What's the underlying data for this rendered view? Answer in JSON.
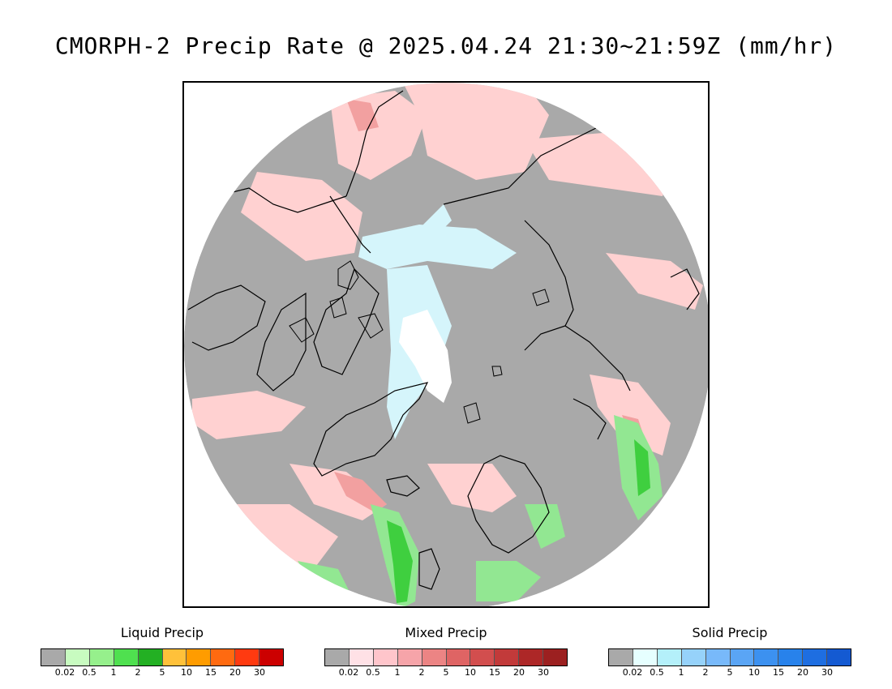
{
  "title": "CMORPH-2 Precip Rate @ 2025.04.24 21:30~21:59Z (mm/hr)",
  "map": {
    "projection": "north-polar-stereographic",
    "background_color": "#a9a9a9",
    "colors": {
      "no_precip": "#a9a9a9",
      "mixed_light": "#ffd1d1",
      "mixed_medium": "#f2a0a0",
      "solid_light": "#d5f5fb",
      "solid_heavy": "#ffffff",
      "liquid_light": "#92e792",
      "liquid_medium": "#3fcf3f",
      "coastline": "#000000"
    }
  },
  "legends": [
    {
      "name": "Liquid Precip",
      "colors": [
        "#a9a9a9",
        "#c8fbc0",
        "#96f08c",
        "#4fe04f",
        "#23b023",
        "#ffc13a",
        "#ff9c00",
        "#ff6a10",
        "#ff3a10",
        "#cc0000"
      ],
      "ticks": [
        "0.02",
        "0.5",
        "1",
        "2",
        "5",
        "10",
        "15",
        "20",
        "30"
      ]
    },
    {
      "name": "Mixed Precip",
      "colors": [
        "#a9a9a9",
        "#ffe1e6",
        "#ffc5cb",
        "#f6a4a9",
        "#ec8484",
        "#df6464",
        "#d24e4e",
        "#c23a3a",
        "#ad2727",
        "#9c2020"
      ],
      "ticks": [
        "0.02",
        "0.5",
        "1",
        "2",
        "5",
        "10",
        "15",
        "20",
        "30"
      ]
    },
    {
      "name": "Solid Precip",
      "colors": [
        "#a9a9a9",
        "#e6ffff",
        "#b4f0fa",
        "#96d2fa",
        "#78b9fa",
        "#5aa5f5",
        "#3c91f0",
        "#2882eb",
        "#1e6ee1",
        "#145ad2"
      ],
      "ticks": [
        "0.02",
        "0.5",
        "1",
        "2",
        "5",
        "10",
        "15",
        "20",
        "30"
      ]
    }
  ]
}
